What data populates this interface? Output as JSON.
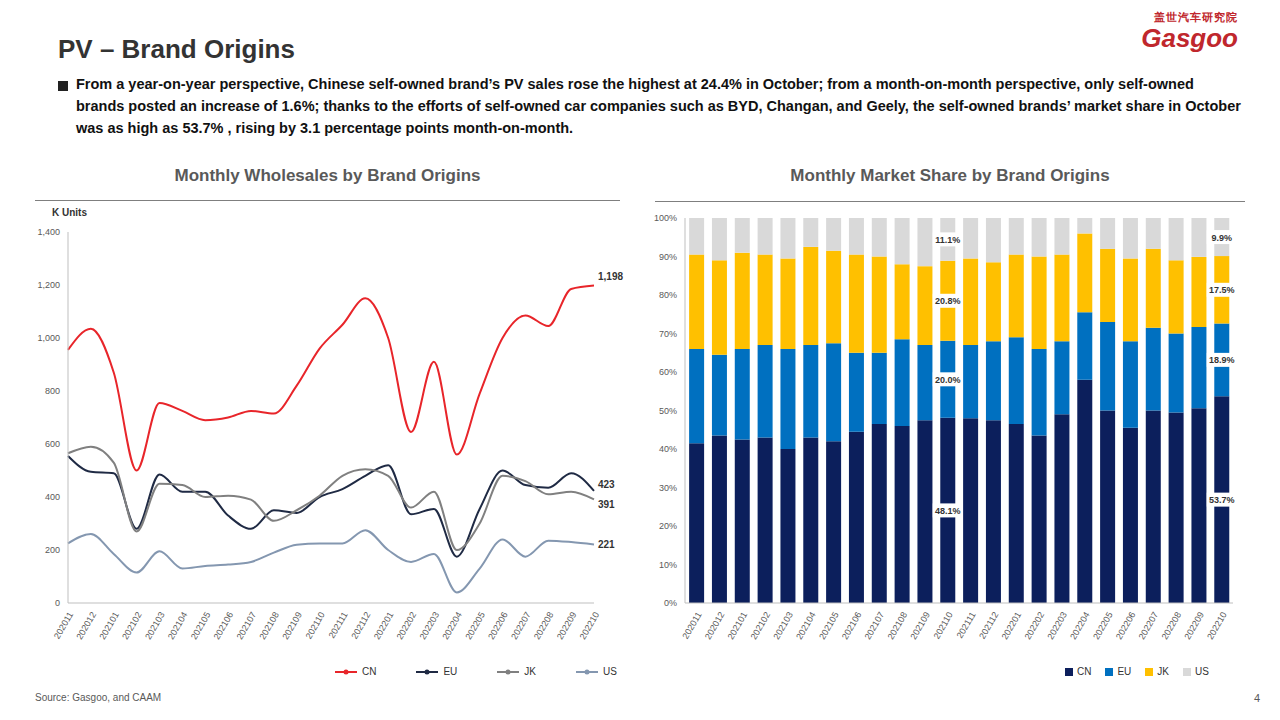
{
  "slide": {
    "title": "PV – Brand Origins",
    "bullet": "From a year-on-year perspective, Chinese self-owned brand’s PV sales rose the highest at 24.4% in October; from a month-on-month perspective, only self-owned brands posted an increase of 1.6%; thanks to the efforts of self-owned car companies such as BYD, Changan, and Geely, the self-owned brands’ market share in October was as high as 53.7% , rising by 3.1 percentage points month-on-month.",
    "source": "Source: Gasgoo, and CAAM",
    "page": "4",
    "logo": {
      "brand_cn": "盖世汽车研究院",
      "brand_en": "Gasgoo"
    }
  },
  "chart_data": [
    {
      "type": "line",
      "title": "Monthly Wholesales by Brand Origins",
      "y_label": "K Units",
      "categories": [
        "202011",
        "202012",
        "202101",
        "202102",
        "202103",
        "202104",
        "202105",
        "202106",
        "202107",
        "202108",
        "202109",
        "202110",
        "202111",
        "202112",
        "202201",
        "202202",
        "202203",
        "202204",
        "202205",
        "202206",
        "202207",
        "202208",
        "202209",
        "202210"
      ],
      "series": [
        {
          "name": "CN",
          "color": "#e8252a",
          "values": [
            955,
            1035,
            870,
            500,
            755,
            725,
            690,
            700,
            725,
            715,
            820,
            960,
            1050,
            1150,
            1000,
            645,
            910,
            560,
            790,
            1000,
            1085,
            1045,
            1185,
            1198
          ],
          "value_labels": [
            null,
            null,
            null,
            null,
            null,
            null,
            null,
            null,
            null,
            null,
            null,
            null,
            null,
            null,
            null,
            null,
            null,
            null,
            null,
            null,
            null,
            null,
            null,
            "1,198"
          ]
        },
        {
          "name": "EU",
          "color": "#1f2a44",
          "values": [
            555,
            495,
            490,
            280,
            485,
            420,
            420,
            330,
            280,
            350,
            340,
            400,
            430,
            480,
            520,
            335,
            355,
            175,
            355,
            500,
            445,
            435,
            490,
            423
          ],
          "value_labels": [
            null,
            null,
            null,
            null,
            null,
            null,
            null,
            null,
            null,
            null,
            null,
            null,
            null,
            null,
            null,
            null,
            null,
            null,
            null,
            null,
            null,
            null,
            null,
            "423"
          ]
        },
        {
          "name": "JK",
          "color": "#808080",
          "values": [
            565,
            590,
            530,
            270,
            450,
            445,
            400,
            405,
            390,
            310,
            350,
            405,
            480,
            505,
            480,
            360,
            420,
            200,
            300,
            480,
            460,
            410,
            420,
            391
          ],
          "value_labels": [
            null,
            null,
            null,
            null,
            null,
            null,
            null,
            null,
            null,
            null,
            null,
            null,
            null,
            null,
            null,
            null,
            null,
            null,
            null,
            null,
            null,
            null,
            null,
            "391"
          ]
        },
        {
          "name": "US",
          "color": "#8497b0",
          "values": [
            225,
            260,
            185,
            115,
            195,
            130,
            140,
            145,
            155,
            190,
            220,
            225,
            225,
            275,
            200,
            155,
            185,
            40,
            130,
            240,
            175,
            235,
            230,
            221
          ],
          "value_labels": [
            null,
            null,
            null,
            null,
            null,
            null,
            null,
            null,
            null,
            null,
            null,
            null,
            null,
            null,
            null,
            null,
            null,
            null,
            null,
            null,
            null,
            null,
            null,
            "221"
          ]
        }
      ],
      "ylim": [
        0,
        1400
      ],
      "yticks": [
        0,
        200,
        400,
        600,
        800,
        {
          "value": 1000,
          "label": "1,000"
        },
        {
          "value": 1200,
          "label": "1,200"
        },
        {
          "value": 1400,
          "label": "1,400"
        }
      ],
      "grid": false
    },
    {
      "type": "bar",
      "stacked": true,
      "title": "Monthly Market Share by Brand Origins",
      "categories": [
        "202011",
        "202012",
        "202101",
        "202102",
        "202103",
        "202104",
        "202105",
        "202106",
        "202107",
        "202108",
        "202109",
        "202110",
        "202111",
        "202112",
        "202201",
        "202202",
        "202203",
        "202204",
        "202205",
        "202206",
        "202207",
        "202208",
        "202209",
        "202210"
      ],
      "series": [
        {
          "name": "CN",
          "color": "#0c1f5c",
          "values": [
            41.5,
            43.5,
            42.5,
            43,
            40,
            43,
            42,
            44.5,
            46.5,
            46,
            47.5,
            48.1,
            48,
            47.5,
            46.5,
            43.5,
            49,
            58,
            50,
            45.5,
            50,
            49.5,
            50.6,
            53.7
          ],
          "value_labels": [
            null,
            null,
            null,
            null,
            null,
            null,
            null,
            null,
            null,
            null,
            null,
            "48.1%",
            null,
            null,
            null,
            null,
            null,
            null,
            null,
            null,
            null,
            null,
            null,
            "53.7%"
          ]
        },
        {
          "name": "EU",
          "color": "#0070c0",
          "values": [
            24.5,
            21,
            23.5,
            24,
            26,
            24,
            25.5,
            20.5,
            18.5,
            22.5,
            19.5,
            20.0,
            19,
            20.5,
            22.5,
            22.5,
            19,
            17.5,
            23,
            22.5,
            21.5,
            20.5,
            21.1,
            18.9
          ],
          "value_labels": [
            null,
            null,
            null,
            null,
            null,
            null,
            null,
            null,
            null,
            null,
            null,
            "20.0%",
            null,
            null,
            null,
            null,
            null,
            null,
            null,
            null,
            null,
            null,
            null,
            "18.9%"
          ]
        },
        {
          "name": "JK",
          "color": "#ffc000",
          "values": [
            24.5,
            24.5,
            25,
            23.5,
            23.5,
            25.5,
            24,
            25.5,
            25,
            19.5,
            20.5,
            20.8,
            22.5,
            20.5,
            21.5,
            24,
            22.5,
            20.5,
            19,
            21.5,
            20.5,
            19,
            18.2,
            17.5
          ],
          "value_labels": [
            null,
            null,
            null,
            null,
            null,
            null,
            null,
            null,
            null,
            null,
            null,
            "20.8%",
            null,
            null,
            null,
            null,
            null,
            null,
            null,
            null,
            null,
            null,
            null,
            "17.5%"
          ]
        },
        {
          "name": "US",
          "color": "#d9d9d9",
          "values": [
            9.5,
            11,
            9,
            9.5,
            10.5,
            7.5,
            8.5,
            9.5,
            10,
            12,
            12.5,
            11.1,
            10.5,
            11.5,
            9.5,
            10,
            9.5,
            4,
            8,
            10.5,
            8,
            11,
            10.1,
            9.9
          ],
          "value_labels": [
            null,
            null,
            null,
            null,
            null,
            null,
            null,
            null,
            null,
            null,
            null,
            "11.1%",
            null,
            null,
            null,
            null,
            null,
            null,
            null,
            null,
            null,
            null,
            null,
            "9.9%"
          ]
        }
      ],
      "ylim": [
        0,
        100
      ],
      "yticks": [
        {
          "value": 0,
          "label": "0%"
        },
        {
          "value": 10,
          "label": "10%"
        },
        {
          "value": 20,
          "label": "20%"
        },
        {
          "value": 30,
          "label": "30%"
        },
        {
          "value": 40,
          "label": "40%"
        },
        {
          "value": 50,
          "label": "50%"
        },
        {
          "value": 60,
          "label": "60%"
        },
        {
          "value": 70,
          "label": "70%"
        },
        {
          "value": 80,
          "label": "80%"
        },
        {
          "value": 90,
          "label": "90%"
        },
        {
          "value": 100,
          "label": "100%"
        }
      ],
      "grid": false
    }
  ]
}
